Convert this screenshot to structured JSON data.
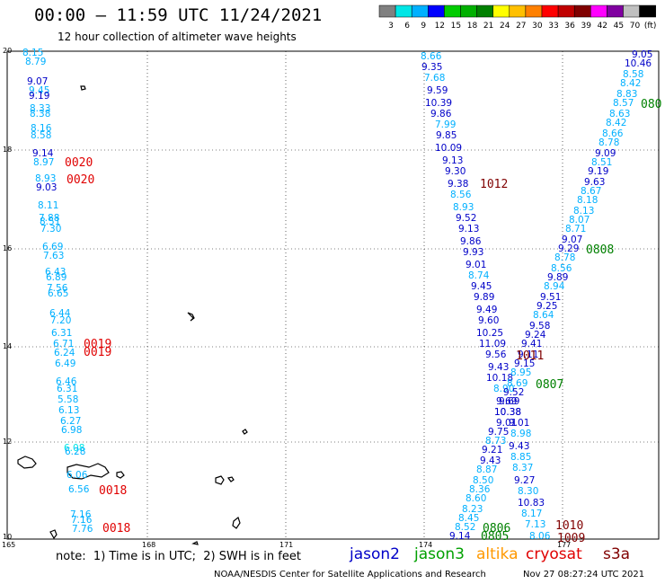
{
  "header": {
    "title": "00:00 – 11:59 UTC 11/24/2021",
    "subtitle": "12 hour collection of altimeter wave heights"
  },
  "legend": {
    "colors": [
      "#808080",
      "#00e6e6",
      "#00b0ff",
      "#0000ff",
      "#00cc00",
      "#00b000",
      "#008000",
      "#ffff00",
      "#ffc000",
      "#ff8000",
      "#ff0000",
      "#c00000",
      "#800000",
      "#ff00ff",
      "#8000a0",
      "#c0c0c0",
      "#000000"
    ],
    "labels": [
      "3",
      "6",
      "9",
      "12",
      "15",
      "18",
      "21",
      "24",
      "27",
      "30",
      "33",
      "36",
      "39",
      "42",
      "45",
      "70",
      "(ft)"
    ]
  },
  "axes": {
    "x_ticks": [
      "165",
      "168",
      "171",
      "174",
      "177"
    ],
    "y_ticks": [
      "20",
      "18",
      "16",
      "14",
      "12",
      "10"
    ]
  },
  "points": [
    [
      "8.15",
      25,
      54,
      "#00b0ff"
    ],
    [
      "8.79",
      28,
      64,
      "#00b0ff"
    ],
    [
      "9.07",
      30,
      86,
      "#0000c8"
    ],
    [
      "9.45",
      32,
      96,
      "#00b0ff"
    ],
    [
      "9.19",
      32,
      102,
      "#0000c8"
    ],
    [
      "8.33",
      33,
      116,
      "#00b0ff"
    ],
    [
      "8.38",
      33,
      122,
      "#00b0ff"
    ],
    [
      "8.16",
      34,
      138,
      "#00b0ff"
    ],
    [
      "8.58",
      34,
      146,
      "#00b0ff"
    ],
    [
      "9.14",
      36,
      166,
      "#0000c8"
    ],
    [
      "8.97",
      37,
      176,
      "#00b0ff"
    ],
    [
      "8.93",
      39,
      194,
      "#00b0ff"
    ],
    [
      "9.03",
      40,
      204,
      "#0000c8"
    ],
    [
      "8.11",
      42,
      224,
      "#00b0ff"
    ],
    [
      "7.88",
      43,
      238,
      "#00b0ff"
    ],
    [
      "8.51",
      44,
      242,
      "#00b0ff"
    ],
    [
      "7.30",
      45,
      250,
      "#00b0ff"
    ],
    [
      "6.69",
      47,
      270,
      "#00b0ff"
    ],
    [
      "7.63",
      48,
      280,
      "#00b0ff"
    ],
    [
      "6.43",
      50,
      298,
      "#00b0ff"
    ],
    [
      "6.89",
      51,
      304,
      "#00b0ff"
    ],
    [
      "7.56",
      52,
      316,
      "#00b0ff"
    ],
    [
      "6.65",
      53,
      322,
      "#00b0ff"
    ],
    [
      "6.44",
      55,
      344,
      "#00b0ff"
    ],
    [
      "7.20",
      56,
      352,
      "#00b0ff"
    ],
    [
      "6.31",
      57,
      366,
      "#00b0ff"
    ],
    [
      "6.71",
      59,
      378,
      "#00b0ff"
    ],
    [
      "6.24",
      60,
      388,
      "#00b0ff"
    ],
    [
      "6.49",
      61,
      400,
      "#00b0ff"
    ],
    [
      "6.46",
      62,
      420,
      "#00b0ff"
    ],
    [
      "6.31",
      63,
      428,
      "#00b0ff"
    ],
    [
      "5.58",
      64,
      440,
      "#00b0ff"
    ],
    [
      "6.13",
      65,
      452,
      "#00b0ff"
    ],
    [
      "6.27",
      67,
      464,
      "#00b0ff"
    ],
    [
      "6.98",
      68,
      474,
      "#00b0ff"
    ],
    [
      "6.08",
      71,
      494,
      "#00e6e6"
    ],
    [
      "6.28",
      72,
      498,
      "#00b0ff"
    ],
    [
      "6.06",
      74,
      524,
      "#00b0ff"
    ],
    [
      "6.56",
      76,
      540,
      "#00b0ff"
    ],
    [
      "7.16",
      78,
      568,
      "#00b0ff"
    ],
    [
      "7.16",
      79,
      574,
      "#00b0ff"
    ],
    [
      "7.76",
      80,
      584,
      "#00b0ff"
    ],
    [
      "8.66",
      468,
      58,
      "#00b0ff"
    ],
    [
      "9.35",
      469,
      70,
      "#0000c8"
    ],
    [
      "7.68",
      472,
      82,
      "#00b0ff"
    ],
    [
      "9.59",
      475,
      96,
      "#0000c8"
    ],
    [
      "10.39",
      473,
      110,
      "#0000c8"
    ],
    [
      "9.86",
      479,
      122,
      "#0000c8"
    ],
    [
      "7.99",
      484,
      134,
      "#00b0ff"
    ],
    [
      "9.85",
      485,
      146,
      "#0000c8"
    ],
    [
      "10.09",
      484,
      160,
      "#0000c8"
    ],
    [
      "9.13",
      492,
      174,
      "#0000c8"
    ],
    [
      "9.30",
      495,
      186,
      "#0000c8"
    ],
    [
      "9.38",
      498,
      200,
      "#0000c8"
    ],
    [
      "8.56",
      501,
      212,
      "#00b0ff"
    ],
    [
      "8.93",
      504,
      226,
      "#00b0ff"
    ],
    [
      "9.52",
      507,
      238,
      "#0000c8"
    ],
    [
      "9.13",
      510,
      250,
      "#0000c8"
    ],
    [
      "9.86",
      512,
      264,
      "#0000c8"
    ],
    [
      "9.93",
      515,
      276,
      "#0000c8"
    ],
    [
      "9.01",
      518,
      290,
      "#0000c8"
    ],
    [
      "8.74",
      521,
      302,
      "#00b0ff"
    ],
    [
      "9.45",
      524,
      314,
      "#0000c8"
    ],
    [
      "9.89",
      527,
      326,
      "#0000c8"
    ],
    [
      "9.49",
      530,
      340,
      "#0000c8"
    ],
    [
      "9.60",
      532,
      352,
      "#0000c8"
    ],
    [
      "10.25",
      530,
      366,
      "#0000c8"
    ],
    [
      "11.09",
      533,
      378,
      "#0000c8"
    ],
    [
      "9.56",
      540,
      390,
      "#0000c8"
    ],
    [
      "9.43",
      543,
      404,
      "#0000c8"
    ],
    [
      "10.18",
      541,
      416,
      "#0000c8"
    ],
    [
      "8.90",
      549,
      428,
      "#00b0ff"
    ],
    [
      "9.69",
      552,
      442,
      "#0000c8"
    ],
    [
      "10.38",
      550,
      454,
      "#0000c8"
    ],
    [
      "9.01",
      552,
      466,
      "#0000c8"
    ],
    [
      "9.75",
      543,
      476,
      "#0000c8"
    ],
    [
      "8.73",
      540,
      486,
      "#00b0ff"
    ],
    [
      "9.21",
      536,
      496,
      "#0000c8"
    ],
    [
      "9.43",
      534,
      508,
      "#0000c8"
    ],
    [
      "8.87",
      530,
      518,
      "#00b0ff"
    ],
    [
      "8.50",
      526,
      530,
      "#00b0ff"
    ],
    [
      "8.36",
      522,
      540,
      "#00b0ff"
    ],
    [
      "8.60",
      518,
      550,
      "#00b0ff"
    ],
    [
      "8.23",
      514,
      562,
      "#00b0ff"
    ],
    [
      "8.45",
      510,
      572,
      "#00b0ff"
    ],
    [
      "8.52",
      506,
      582,
      "#00b0ff"
    ],
    [
      "9.14",
      500,
      592,
      "#0000c8"
    ],
    [
      "9.05",
      703,
      56,
      "#0000c8"
    ],
    [
      "10.46",
      695,
      66,
      "#0000c8"
    ],
    [
      "8.58",
      693,
      78,
      "#00b0ff"
    ],
    [
      "8.42",
      690,
      88,
      "#00b0ff"
    ],
    [
      "8.83",
      686,
      100,
      "#00b0ff"
    ],
    [
      "8.57",
      682,
      110,
      "#00b0ff"
    ],
    [
      "8.63",
      678,
      122,
      "#00b0ff"
    ],
    [
      "8.42",
      674,
      132,
      "#00b0ff"
    ],
    [
      "8.66",
      670,
      144,
      "#00b0ff"
    ],
    [
      "8.78",
      666,
      154,
      "#00b0ff"
    ],
    [
      "9.09",
      662,
      166,
      "#0000c8"
    ],
    [
      "8.51",
      658,
      176,
      "#00b0ff"
    ],
    [
      "9.19",
      654,
      186,
      "#0000c8"
    ],
    [
      "9.63",
      650,
      198,
      "#0000c8"
    ],
    [
      "8.67",
      646,
      208,
      "#00b0ff"
    ],
    [
      "8.18",
      642,
      218,
      "#00b0ff"
    ],
    [
      "8.13",
      638,
      230,
      "#00b0ff"
    ],
    [
      "8.07",
      633,
      240,
      "#00b0ff"
    ],
    [
      "8.71",
      629,
      250,
      "#00b0ff"
    ],
    [
      "9.07",
      625,
      262,
      "#0000c8"
    ],
    [
      "9.29",
      621,
      272,
      "#0000c8"
    ],
    [
      "8.78",
      617,
      282,
      "#00b0ff"
    ],
    [
      "8.56",
      613,
      294,
      "#00b0ff"
    ],
    [
      "9.89",
      609,
      304,
      "#0000c8"
    ],
    [
      "8.94",
      605,
      314,
      "#00b0ff"
    ],
    [
      "9.51",
      601,
      326,
      "#0000c8"
    ],
    [
      "9.25",
      597,
      336,
      "#0000c8"
    ],
    [
      "8.64",
      593,
      346,
      "#00b0ff"
    ],
    [
      "9.58",
      589,
      358,
      "#0000c8"
    ],
    [
      "9.24",
      584,
      368,
      "#0000c8"
    ],
    [
      "9.41",
      580,
      378,
      "#0000c8"
    ],
    [
      "9.11",
      576,
      390,
      "#0000c8"
    ],
    [
      "9.15",
      572,
      400,
      "#0000c8"
    ],
    [
      "8.95",
      568,
      410,
      "#00b0ff"
    ],
    [
      "8.69",
      564,
      422,
      "#00b0ff"
    ],
    [
      "9.52",
      560,
      432,
      "#0000c8"
    ],
    [
      "9.69",
      555,
      442,
      "#0000c8"
    ],
    [
      "10.38",
      550,
      454,
      "#0000c8"
    ],
    [
      "9.01",
      566,
      466,
      "#0000c8"
    ],
    [
      "8.98",
      568,
      478,
      "#00b0ff"
    ],
    [
      "9.43",
      566,
      492,
      "#0000c8"
    ],
    [
      "8.85",
      568,
      504,
      "#00b0ff"
    ],
    [
      "8.37",
      570,
      516,
      "#00b0ff"
    ],
    [
      "9.27",
      572,
      530,
      "#0000c8"
    ],
    [
      "8.30",
      576,
      542,
      "#00b0ff"
    ],
    [
      "10.83",
      576,
      555,
      "#0000c8"
    ],
    [
      "8.17",
      580,
      567,
      "#00b0ff"
    ],
    [
      "7.13",
      584,
      579,
      "#00b0ff"
    ],
    [
      "8.06",
      589,
      592,
      "#00b0ff"
    ]
  ],
  "passes": [
    [
      "0020",
      72,
      174,
      "#e00000"
    ],
    [
      "0020",
      74,
      193,
      "#e00000"
    ],
    [
      "1012",
      534,
      198,
      "#800000"
    ],
    [
      "0808",
      652,
      271,
      "#008000"
    ],
    [
      "080",
      713,
      109,
      "#008000"
    ],
    [
      "0019",
      93,
      376,
      "#e00000"
    ],
    [
      "0019",
      93,
      385,
      "#e00000"
    ],
    [
      "1011",
      574,
      389,
      "#800000"
    ],
    [
      "0807",
      596,
      421,
      "#008000"
    ],
    [
      "0018",
      110,
      539,
      "#e00000"
    ],
    [
      "0018",
      114,
      581,
      "#e00000"
    ],
    [
      "0806",
      537,
      581,
      "#008000"
    ],
    [
      "0805",
      535,
      590,
      "#008000"
    ],
    [
      "1010",
      618,
      578,
      "#800000"
    ],
    [
      "1009",
      620,
      592,
      "#800000"
    ]
  ],
  "note": "note:  1) Time is in UTC;  2) SWH is in feet",
  "satellites": [
    {
      "name": "jason2",
      "color": "#0000c8"
    },
    {
      "name": "jason3",
      "color": "#00a000"
    },
    {
      "name": "altika",
      "color": "#ff9900"
    },
    {
      "name": "cryosat",
      "color": "#e00000"
    },
    {
      "name": "s3a",
      "color": "#800000"
    }
  ],
  "footer": {
    "left": "NOAA/NESDIS Center for Satellite Applications and Research",
    "right": "Nov 27 08:27:24 UTC 2021"
  }
}
